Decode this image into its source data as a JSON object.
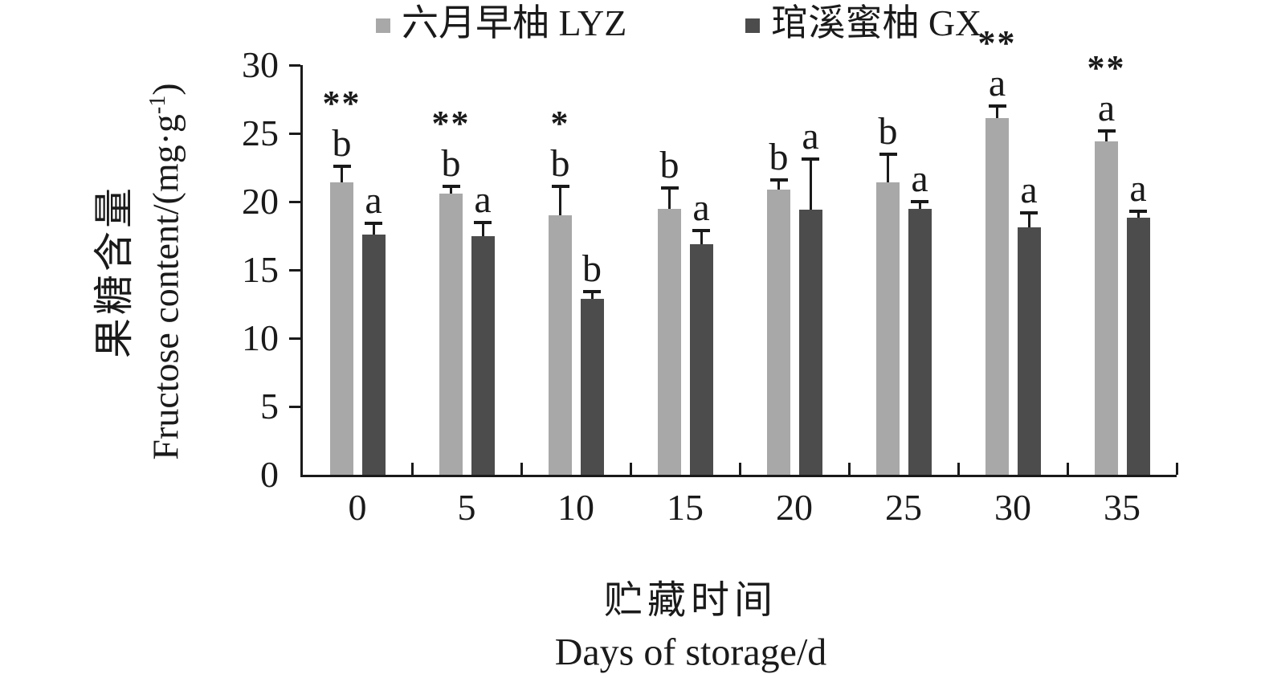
{
  "legend": {
    "items": [
      {
        "label": "六月早柚 LYZ",
        "color": "#A8A8A8"
      },
      {
        "label": "琯溪蜜柚 GX",
        "color": "#4C4C4C"
      }
    ]
  },
  "y_axis": {
    "title_zh": "果糖含量",
    "title_en_pre": "Fructose content/(mg·g",
    "title_en_sup": "-1",
    "title_en_post": ")",
    "ticks": [
      0,
      5,
      10,
      15,
      20,
      25,
      30
    ]
  },
  "x_axis": {
    "title_zh": "贮藏时间",
    "title_en": "Days of storage/d"
  },
  "chart_data": {
    "type": "bar",
    "title": "",
    "xlabel": "贮藏时间 Days of storage/d",
    "ylabel": "果糖含量 Fructose content/(mg·g⁻¹)",
    "categories": [
      "0",
      "5",
      "10",
      "15",
      "20",
      "25",
      "30",
      "35"
    ],
    "ylim": [
      0,
      30
    ],
    "ytick_interval": 5,
    "grid": false,
    "legend_position": "top",
    "series": [
      {
        "name": "六月早柚 LYZ",
        "color": "#A8A8A8",
        "values": [
          21.4,
          20.6,
          19.0,
          19.5,
          20.9,
          21.4,
          26.1,
          24.4
        ],
        "errors": [
          1.2,
          0.5,
          2.1,
          1.5,
          0.7,
          2.1,
          0.9,
          0.8
        ],
        "sig_letters": [
          "b",
          "b",
          "b",
          "b",
          "b",
          "b",
          "a",
          "a"
        ],
        "sig_stars": [
          "**",
          "**",
          "*",
          "",
          "",
          "",
          "**",
          "**"
        ]
      },
      {
        "name": "琯溪蜜柚 GX",
        "color": "#4C4C4C",
        "values": [
          17.6,
          17.5,
          12.9,
          16.9,
          19.4,
          19.5,
          18.1,
          18.8
        ],
        "errors": [
          0.8,
          1.0,
          0.5,
          1.0,
          3.7,
          0.5,
          1.1,
          0.5
        ],
        "sig_letters": [
          "a",
          "a",
          "b",
          "a",
          "a",
          "a",
          "a",
          "a"
        ],
        "sig_stars": [
          "",
          "",
          "",
          "",
          "",
          "",
          "",
          ""
        ]
      }
    ]
  }
}
